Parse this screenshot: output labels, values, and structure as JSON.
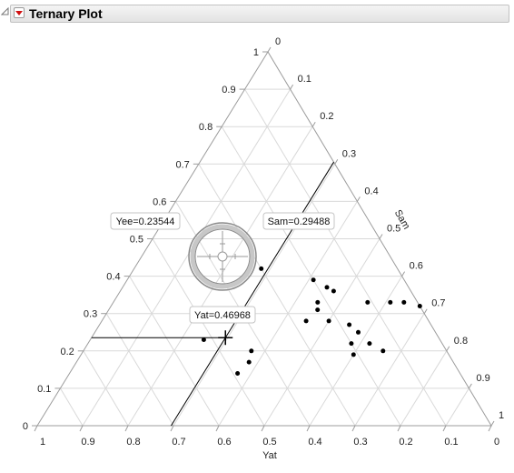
{
  "header": {
    "title": "Ternary Plot"
  },
  "chart_data": {
    "type": "scatter",
    "plot_kind": "ternary",
    "axes": {
      "bottom": {
        "name": "Yat",
        "ticks": [
          "1",
          "0.9",
          "0.8",
          "0.7",
          "0.6",
          "0.5",
          "0.4",
          "0.3",
          "0.2",
          "0.1",
          "0"
        ]
      },
      "left": {
        "name": "",
        "ticks": [
          "0",
          "0.1",
          "0.2",
          "0.3",
          "0.4",
          "0.5",
          "0.6",
          "0.7",
          "0.8",
          "0.9",
          "1"
        ]
      },
      "right": {
        "name": "Sam",
        "ticks": [
          "0",
          "0.1",
          "0.2",
          "0.3",
          "0.4",
          "0.5",
          "0.6",
          "0.7",
          "0.8",
          "0.9",
          "1"
        ]
      }
    },
    "grid": true,
    "points": [
      {
        "yee": 0.42,
        "sam": 0.28
      },
      {
        "yee": 0.39,
        "sam": 0.41
      },
      {
        "yee": 0.37,
        "sam": 0.45
      },
      {
        "yee": 0.36,
        "sam": 0.47
      },
      {
        "yee": 0.33,
        "sam": 0.45
      },
      {
        "yee": 0.31,
        "sam": 0.46
      },
      {
        "yee": 0.28,
        "sam": 0.45
      },
      {
        "yee": 0.28,
        "sam": 0.5
      },
      {
        "yee": 0.27,
        "sam": 0.55
      },
      {
        "yee": 0.25,
        "sam": 0.58
      },
      {
        "yee": 0.33,
        "sam": 0.56
      },
      {
        "yee": 0.33,
        "sam": 0.61
      },
      {
        "yee": 0.33,
        "sam": 0.64
      },
      {
        "yee": 0.32,
        "sam": 0.68
      },
      {
        "yee": 0.22,
        "sam": 0.58
      },
      {
        "yee": 0.22,
        "sam": 0.62
      },
      {
        "yee": 0.2,
        "sam": 0.66
      },
      {
        "yee": 0.19,
        "sam": 0.6
      },
      {
        "yee": 0.23,
        "sam": 0.25
      },
      {
        "yee": 0.2,
        "sam": 0.37
      },
      {
        "yee": 0.17,
        "sam": 0.38
      },
      {
        "yee": 0.14,
        "sam": 0.37
      }
    ],
    "crosshair": {
      "yee": 0.23544,
      "sam": 0.29488,
      "yat": 0.46968,
      "labels": [
        "Yee=0.23544",
        "Sam=0.29488",
        "Yat=0.46968"
      ]
    }
  }
}
